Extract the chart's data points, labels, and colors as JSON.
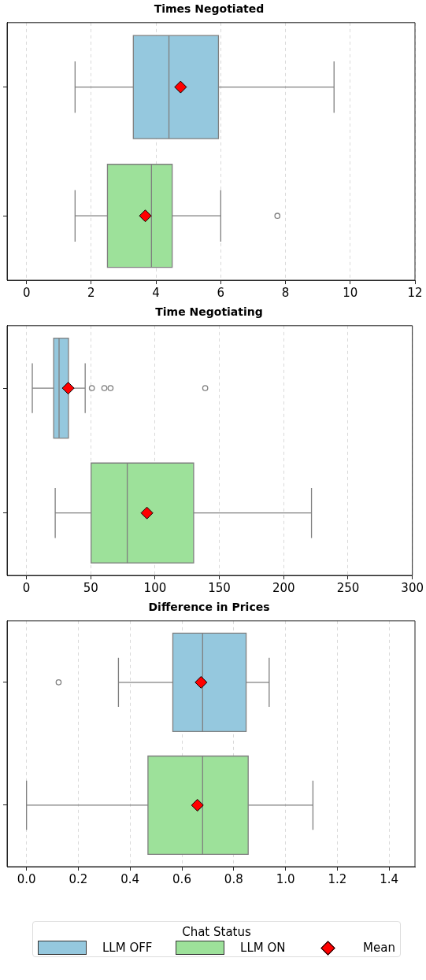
{
  "chart_data": [
    {
      "type": "box",
      "title": "Times Negotiated",
      "orientation": "horizontal",
      "categories": [
        null,
        null
      ],
      "xlim": [
        -0.6,
        12
      ],
      "xticks": [
        0,
        2,
        4,
        6,
        8,
        10,
        12
      ],
      "grid": "x",
      "tick_labels": "x",
      "series": [
        {
          "color": "#95c8de",
          "boxes": [
            {
              "low": 1.5,
              "q1": 3.3,
              "median": 4.4,
              "q3": 5.93,
              "high": 9.5
            },
            null
          ]
        },
        {
          "color": "#9de19a",
          "boxes": [
            null,
            {
              "low": 1.5,
              "q1": 2.5,
              "median": 3.86,
              "q3": 4.5,
              "high": 6,
              "outliers": [
                7.75
              ]
            }
          ]
        },
        {
          "type": "scatter",
          "color": "#ff0000",
          "marker": "diamond",
          "values": [
            4.76,
            3.67
          ]
        }
      ]
    },
    {
      "type": "box",
      "title": "Time Negotiating",
      "orientation": "horizontal",
      "categories": [
        null,
        null
      ],
      "xlim": [
        -15,
        300
      ],
      "xticks": [
        0,
        50,
        100,
        150,
        200,
        250,
        300
      ],
      "grid": "x",
      "tick_labels": "x",
      "series": [
        {
          "color": "#95c8de",
          "boxes": [
            {
              "low": 4.6,
              "q1": 21.2,
              "median": 25.4,
              "q3": 32.7,
              "high": 45.7,
              "outliers": [
                50.9,
                60.6,
                65.4,
                139
              ]
            },
            null
          ]
        },
        {
          "color": "#9de19a",
          "boxes": [
            null,
            {
              "low": 22.4,
              "q1": 50.3,
              "median": 78.4,
              "q3": 130,
              "high": 221.6
            }
          ]
        },
        {
          "type": "scatter",
          "color": "#ff0000",
          "marker": "diamond",
          "values": [
            32.5,
            93.7
          ]
        }
      ]
    },
    {
      "type": "box",
      "title": "Difference in Prices",
      "orientation": "horizontal",
      "categories": [
        null,
        null
      ],
      "xlim": [
        -0.075,
        1.5
      ],
      "xticks": [
        {
          "value": 0,
          "label": "0.0"
        },
        {
          "value": 0.2,
          "label": "0.2"
        },
        {
          "value": 0.4,
          "label": "0.4"
        },
        {
          "value": 0.6,
          "label": "0.6"
        },
        {
          "value": 0.8,
          "label": "0.8"
        },
        {
          "value": 1,
          "label": "1.0"
        },
        {
          "value": 1.2,
          "label": "1.2"
        },
        {
          "value": 1.4,
          "label": "1.4"
        }
      ],
      "grid": "x",
      "tick_labels": "x",
      "legend": "bottom",
      "legend_title": "Chat Status",
      "series": [
        {
          "name": "LLM OFF",
          "color": "#95c8de",
          "boxes": [
            {
              "low": 0.355,
              "q1": 0.565,
              "median": 0.68,
              "q3": 0.848,
              "high": 0.937,
              "outliers": [
                0.124
              ]
            },
            null
          ]
        },
        {
          "name": "LLM ON",
          "color": "#9de19a",
          "boxes": [
            null,
            {
              "low": 0,
              "q1": 0.469,
              "median": 0.68,
              "q3": 0.856,
              "high": 1.106
            }
          ]
        },
        {
          "name": "Mean",
          "type": "scatter",
          "color": "#ff0000",
          "marker": "diamond",
          "values": [
            0.674,
            0.66
          ]
        }
      ]
    }
  ]
}
